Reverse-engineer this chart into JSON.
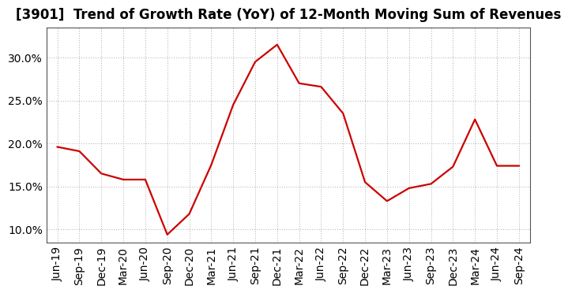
{
  "title": "[3901]  Trend of Growth Rate (YoY) of 12-Month Moving Sum of Revenues",
  "x_labels": [
    "Jun-19",
    "Sep-19",
    "Dec-19",
    "Mar-20",
    "Jun-20",
    "Sep-20",
    "Dec-20",
    "Mar-21",
    "Jun-21",
    "Sep-21",
    "Dec-21",
    "Mar-22",
    "Jun-22",
    "Sep-22",
    "Dec-22",
    "Mar-23",
    "Jun-23",
    "Sep-23",
    "Dec-23",
    "Mar-24",
    "Jun-24",
    "Sep-24"
  ],
  "y_values": [
    0.196,
    0.191,
    0.165,
    0.158,
    0.158,
    0.094,
    0.118,
    0.175,
    0.245,
    0.295,
    0.315,
    0.27,
    0.266,
    0.235,
    0.155,
    0.133,
    0.148,
    0.153,
    0.173,
    0.228,
    0.174,
    0.174
  ],
  "line_color": "#cc0000",
  "line_width": 1.6,
  "ylim": [
    0.085,
    0.335
  ],
  "yticks": [
    0.1,
    0.15,
    0.2,
    0.25,
    0.3
  ],
  "background_color": "#ffffff",
  "grid_color": "#aaaaaa",
  "title_fontsize": 12,
  "tick_fontsize": 10
}
